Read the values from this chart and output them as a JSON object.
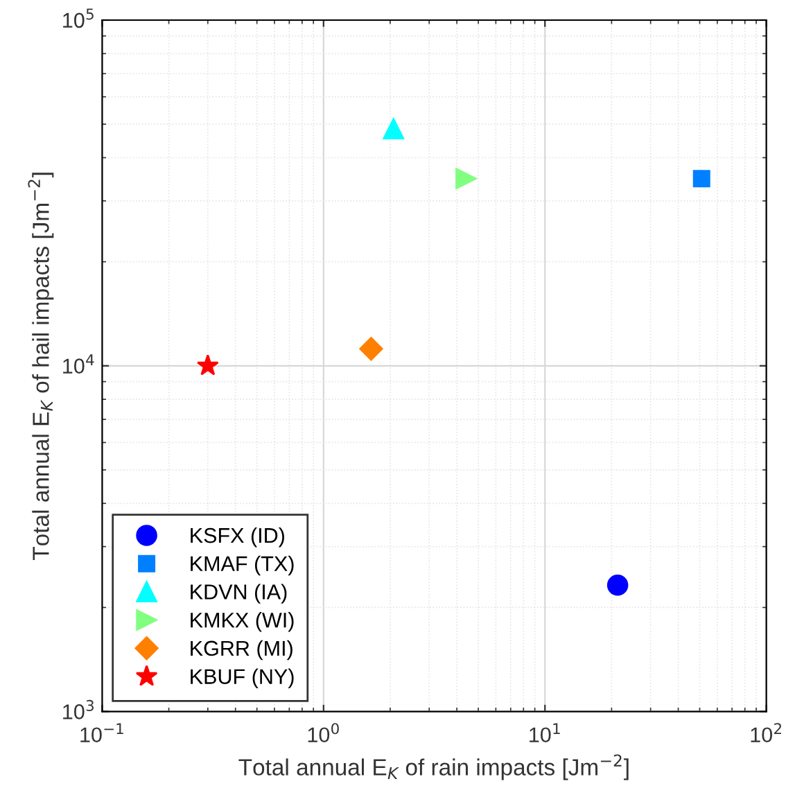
{
  "chart_data": {
    "type": "scatter",
    "xlabel": "Total annual E$_{K}$ of rain impacts [Jm$^{−2}$]",
    "ylabel": "Total annual E$_{K}$ of hail impacts [Jm$^{−2}$]",
    "log": "xy",
    "grid": true,
    "legend": "bottom left",
    "xlim": [
      0.1,
      100
    ],
    "ylim": [
      1000,
      100000
    ],
    "xticks": [
      {
        "value": 0.1,
        "label": "10$^{−1}$"
      },
      {
        "value": 1,
        "label": "10$^{0}$"
      },
      {
        "value": 10,
        "label": "10$^{1}$"
      },
      {
        "value": 100,
        "label": "10$^{2}$"
      }
    ],
    "yticks": [
      {
        "value": 1000,
        "label": "10$^{3}$"
      },
      {
        "value": 10000,
        "label": "10$^{4}$"
      },
      {
        "value": 100000,
        "label": "10$^{5}$"
      }
    ],
    "series": [
      {
        "name": "KSFX (ID)",
        "color": "#0000ff",
        "marker": "circle",
        "x": [
          21.3
        ],
        "values": [
          2320
        ]
      },
      {
        "name": "KMAF (TX)",
        "color": "#0080ff",
        "marker": "square",
        "x": [
          51
        ],
        "values": [
          34800
        ]
      },
      {
        "name": "KDVN (IA)",
        "color": "#00ffff",
        "marker": "triangle",
        "x": [
          2.07
        ],
        "values": [
          48500
        ]
      },
      {
        "name": "KMKX (WI)",
        "color": "#80ff80",
        "marker": "triangle_right",
        "x": [
          4.4
        ],
        "values": [
          34800
        ]
      },
      {
        "name": "KGRR (MI)",
        "color": "#ff8000",
        "marker": "diamond",
        "x": [
          1.64
        ],
        "values": [
          11200
        ]
      },
      {
        "name": "KBUF (NY)",
        "color": "#ff0000",
        "marker": "star",
        "x": [
          0.3
        ],
        "values": [
          10000
        ]
      }
    ]
  }
}
